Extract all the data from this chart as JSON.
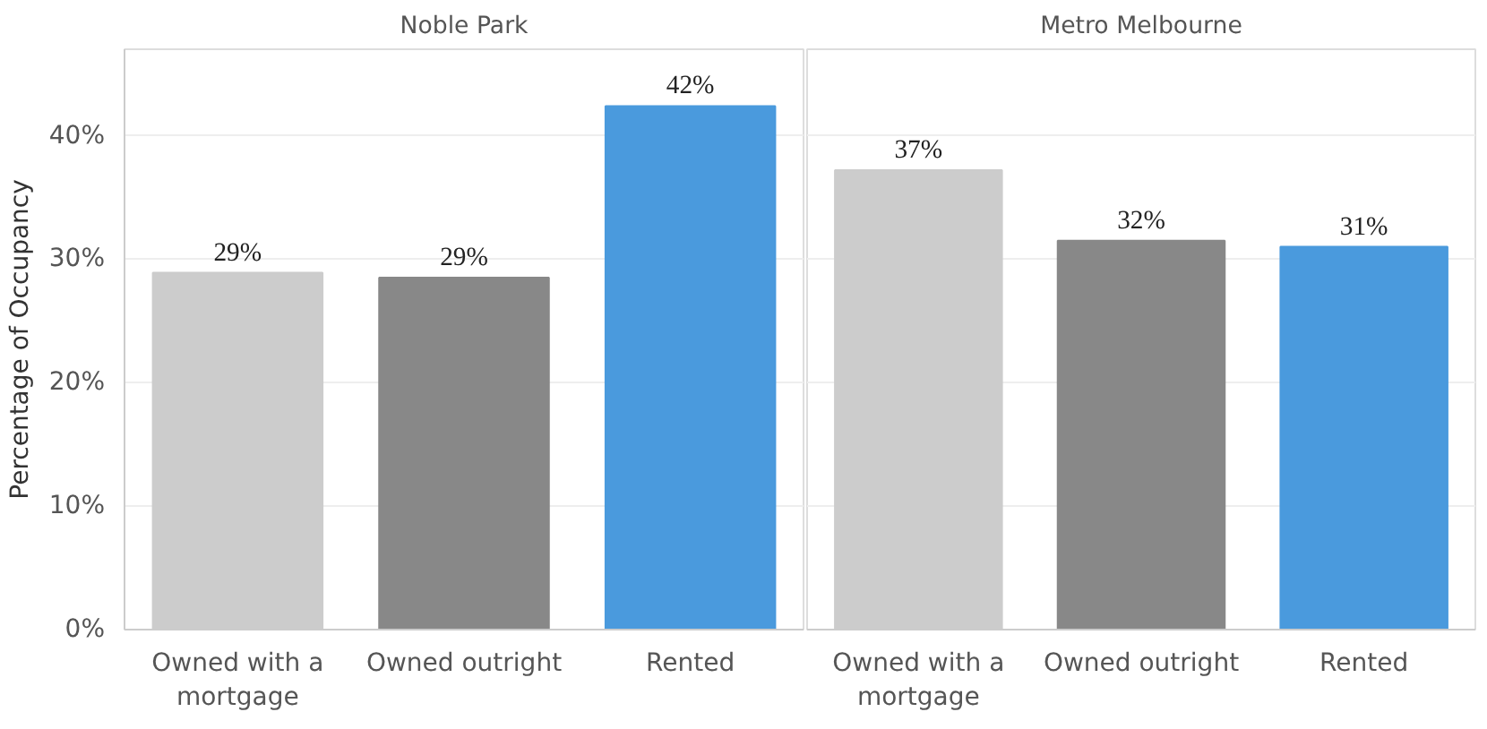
{
  "chart_data": [
    {
      "type": "bar",
      "title": "Noble Park",
      "ylabel": "Percentage of Occupancy",
      "categories": [
        "Owned with a mortgage",
        "Owned outright",
        "Rented"
      ],
      "values": [
        28.9,
        28.5,
        42.4
      ],
      "value_labels": [
        "29%",
        "29%",
        "42%"
      ],
      "colors": [
        "#cccccc",
        "#888888",
        "#4a9add"
      ],
      "ylim": [
        0,
        47
      ],
      "yticks": [
        {
          "value": 0,
          "label": "0%"
        },
        {
          "value": 10,
          "label": "10%"
        },
        {
          "value": 20,
          "label": "20%"
        },
        {
          "value": 30,
          "label": "30%"
        },
        {
          "value": 40,
          "label": "40%"
        }
      ],
      "grid": "y"
    },
    {
      "type": "bar",
      "title": "Metro Melbourne",
      "categories": [
        "Owned with a mortgage",
        "Owned outright",
        "Rented"
      ],
      "values": [
        37.2,
        31.5,
        31.0
      ],
      "value_labels": [
        "37%",
        "32%",
        "31%"
      ],
      "colors": [
        "#cccccc",
        "#888888",
        "#4a9add"
      ],
      "ylim": [
        0,
        47
      ],
      "yticks": [
        {
          "value": 0,
          "label": null
        },
        {
          "value": 10,
          "label": null
        },
        {
          "value": 20,
          "label": null
        },
        {
          "value": 30,
          "label": null
        },
        {
          "value": 40,
          "label": null
        }
      ],
      "grid": "y",
      "tick_labels": "x"
    }
  ]
}
